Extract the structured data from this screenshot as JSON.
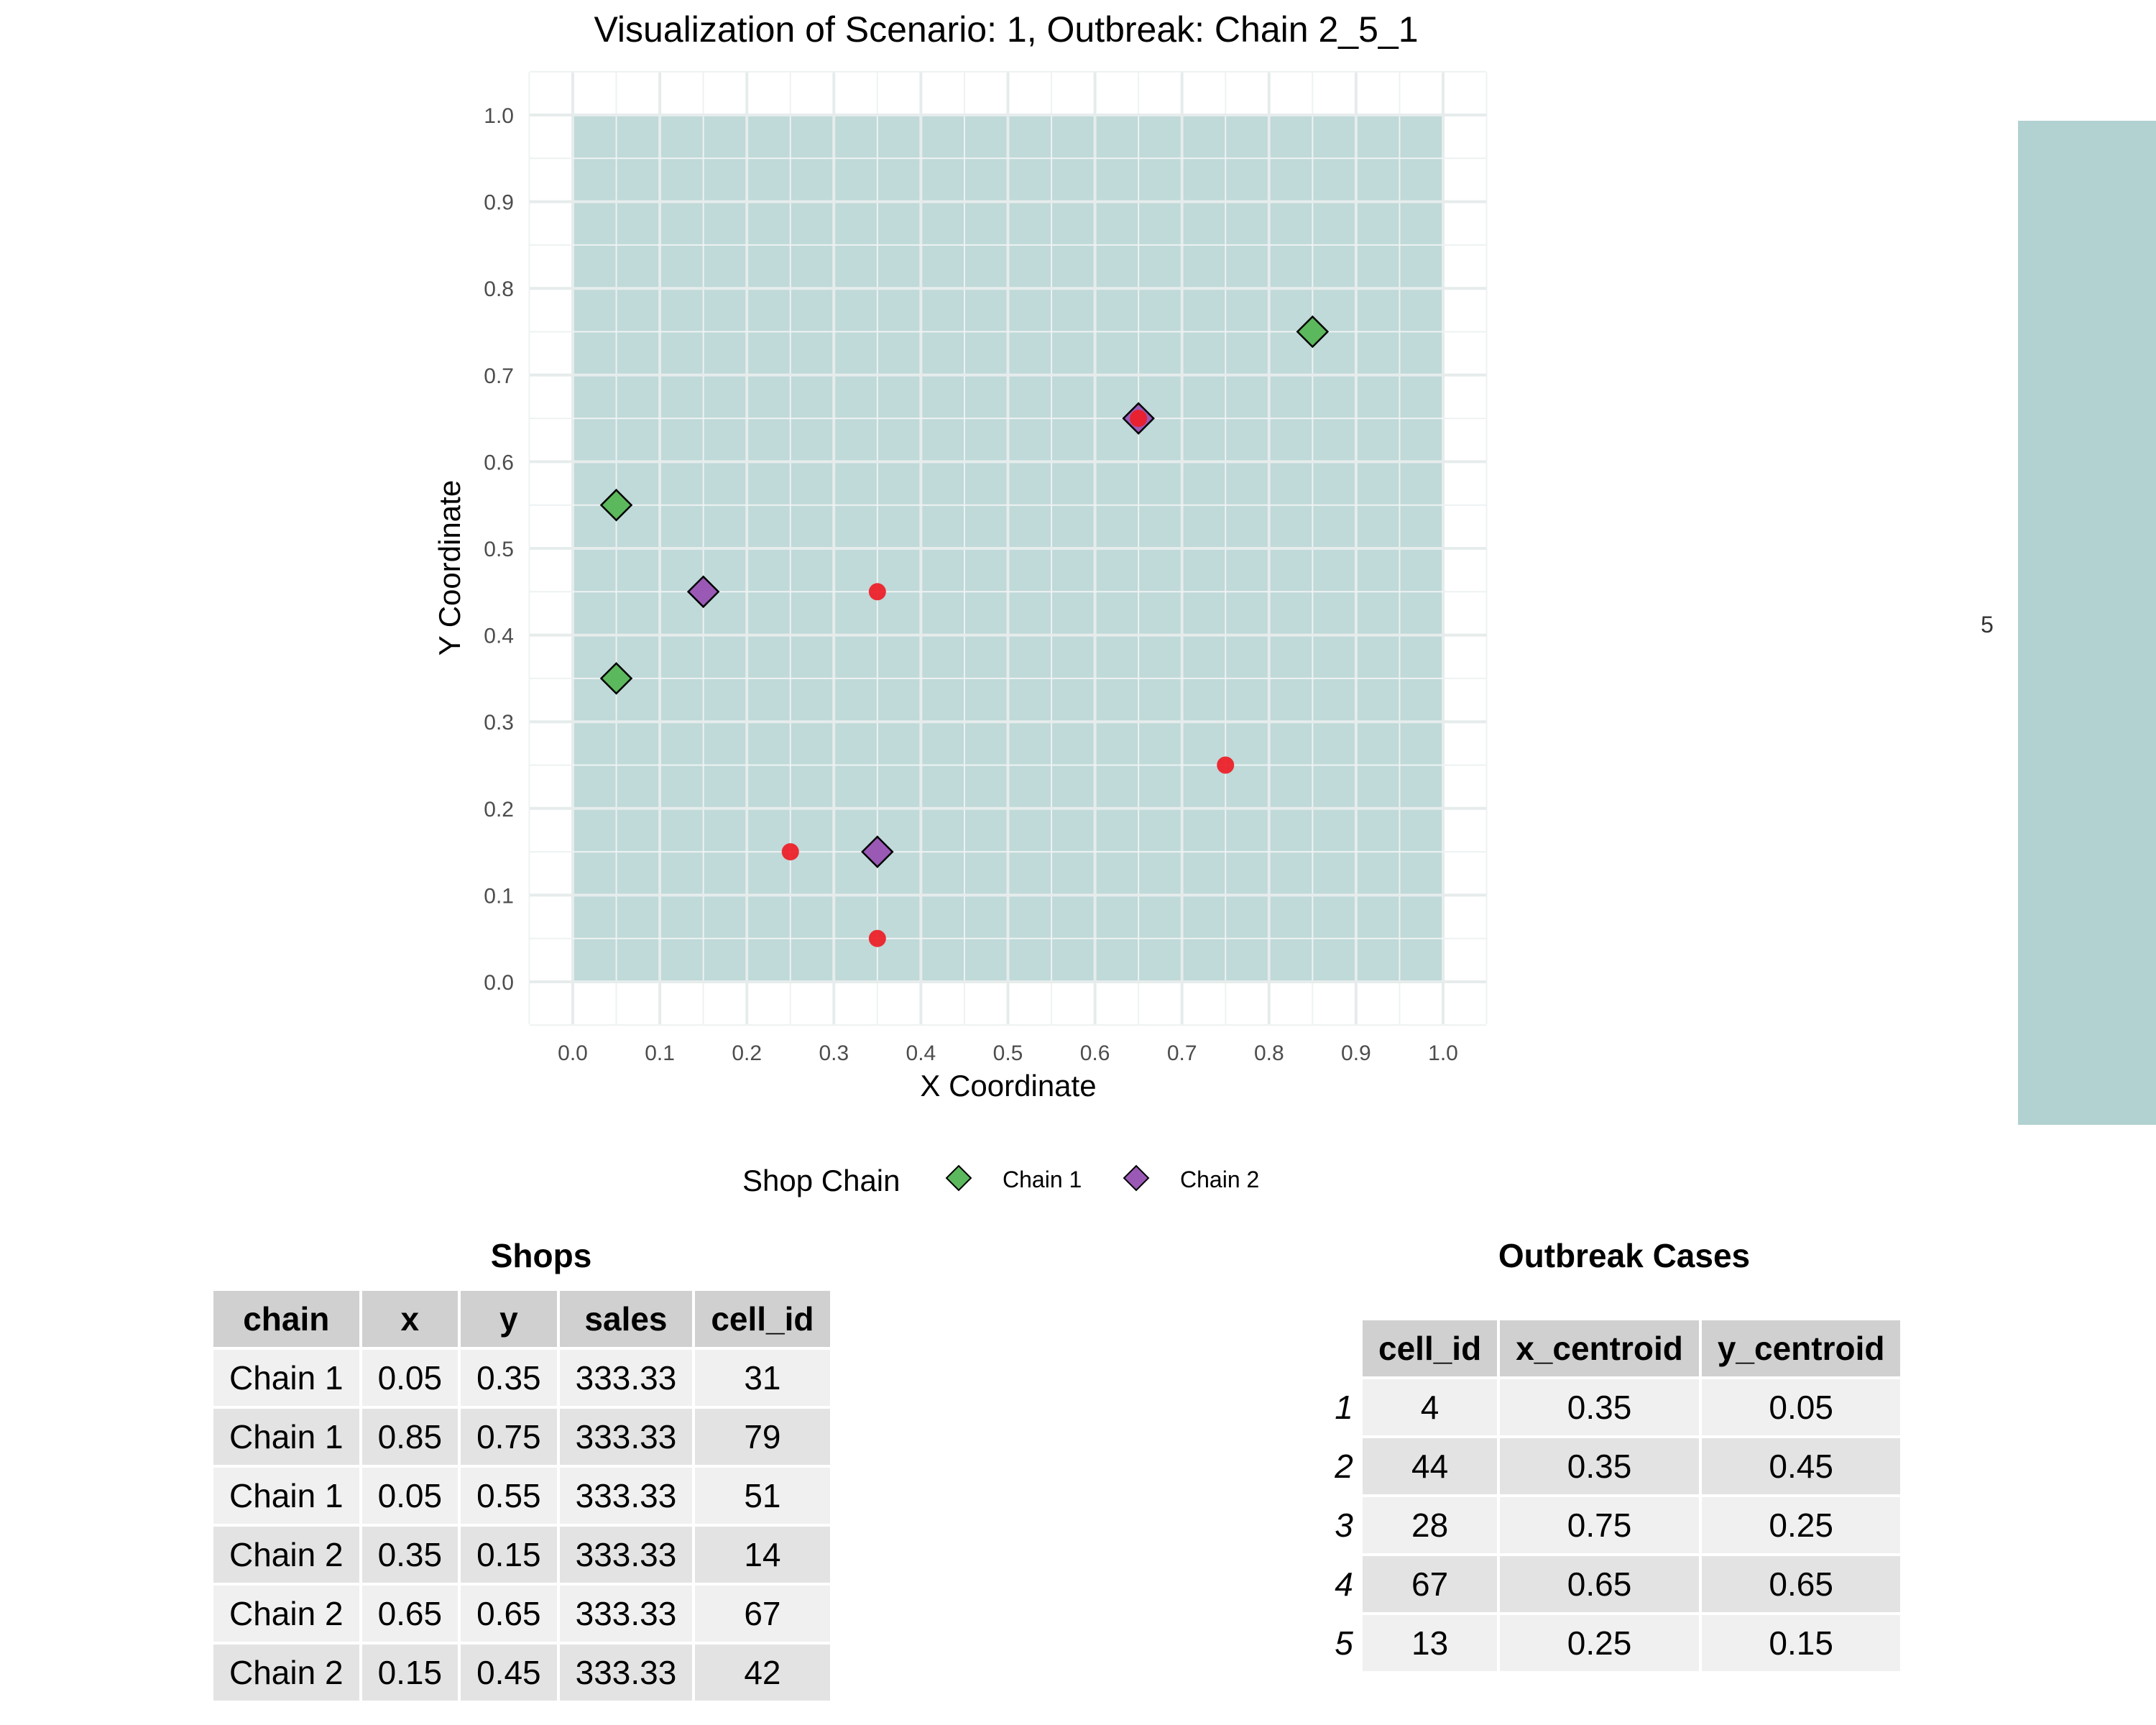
{
  "chart_data": {
    "type": "scatter",
    "title": "Visualization of Scenario: 1, Outbreak: Chain 2_5_1",
    "xlabel": "X Coordinate",
    "ylabel": "Y Coordinate",
    "xlim": [
      0,
      1
    ],
    "ylim": [
      0,
      1
    ],
    "xticks": [
      "0.0",
      "0.1",
      "0.2",
      "0.3",
      "0.4",
      "0.5",
      "0.6",
      "0.7",
      "0.8",
      "0.9",
      "1.0"
    ],
    "yticks": [
      "0.0",
      "0.1",
      "0.2",
      "0.3",
      "0.4",
      "0.5",
      "0.6",
      "0.7",
      "0.8",
      "0.9",
      "1.0"
    ],
    "grid": true,
    "background_region_color": "#b2d1d1",
    "shops": [
      {
        "chain": "Chain 1",
        "x": 0.05,
        "y": 0.35
      },
      {
        "chain": "Chain 1",
        "x": 0.85,
        "y": 0.75
      },
      {
        "chain": "Chain 1",
        "x": 0.05,
        "y": 0.55
      },
      {
        "chain": "Chain 2",
        "x": 0.35,
        "y": 0.15
      },
      {
        "chain": "Chain 2",
        "x": 0.65,
        "y": 0.65
      },
      {
        "chain": "Chain 2",
        "x": 0.15,
        "y": 0.45
      }
    ],
    "cases": [
      {
        "x": 0.35,
        "y": 0.05
      },
      {
        "x": 0.35,
        "y": 0.45
      },
      {
        "x": 0.75,
        "y": 0.25
      },
      {
        "x": 0.65,
        "y": 0.65
      },
      {
        "x": 0.25,
        "y": 0.15
      }
    ],
    "chain_colors": {
      "Chain 1": "#5cb85c",
      "Chain 2": "#9b59b6"
    },
    "case_color": "#ee1c25",
    "legend": {
      "title": "Shop Chain",
      "placement": "bottom",
      "entries": [
        {
          "label": "Chain 1",
          "color": "#5cb85c"
        },
        {
          "label": "Chain 2",
          "color": "#9b59b6"
        }
      ]
    },
    "colorbar": {
      "label": "5",
      "color": "#b2d1d1"
    }
  },
  "shops_table": {
    "title": "Shops",
    "headers": [
      "chain",
      "x",
      "y",
      "sales",
      "cell_id"
    ],
    "rows": [
      [
        "Chain 1",
        "0.05",
        "0.35",
        "333.33",
        "31"
      ],
      [
        "Chain 1",
        "0.85",
        "0.75",
        "333.33",
        "79"
      ],
      [
        "Chain 1",
        "0.05",
        "0.55",
        "333.33",
        "51"
      ],
      [
        "Chain 2",
        "0.35",
        "0.15",
        "333.33",
        "14"
      ],
      [
        "Chain 2",
        "0.65",
        "0.65",
        "333.33",
        "67"
      ],
      [
        "Chain 2",
        "0.15",
        "0.45",
        "333.33",
        "42"
      ]
    ]
  },
  "cases_table": {
    "title": "Outbreak Cases",
    "headers": [
      "cell_id",
      "x_centroid",
      "y_centroid"
    ],
    "row_names": [
      "1",
      "2",
      "3",
      "4",
      "5"
    ],
    "rows": [
      [
        "4",
        "0.35",
        "0.05"
      ],
      [
        "44",
        "0.35",
        "0.45"
      ],
      [
        "28",
        "0.75",
        "0.25"
      ],
      [
        "67",
        "0.65",
        "0.65"
      ],
      [
        "13",
        "0.25",
        "0.15"
      ]
    ]
  }
}
